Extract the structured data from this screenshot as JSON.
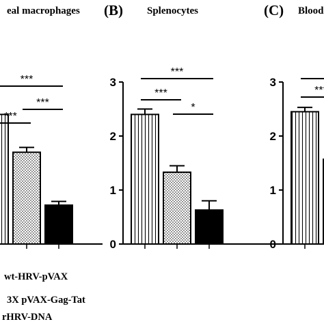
{
  "chart_data": [
    {
      "panel_label": "",
      "title": "eal macrophages",
      "type": "bar",
      "categories": [
        "wt-HRV-pVAX",
        "3X pVAX-Gag-Tat",
        "rHRV-DNA"
      ],
      "values": [
        2.4,
        1.7,
        0.72
      ],
      "errors": [
        0.0,
        0.09,
        0.07
      ],
      "ylim": [
        0,
        3
      ],
      "yticks": [],
      "significance": [
        {
          "from": 0,
          "to": 1,
          "label": "***"
        },
        {
          "from": 0,
          "to": 2,
          "label": "***"
        },
        {
          "from": 1,
          "to": 2,
          "label": "***"
        }
      ]
    },
    {
      "panel_label": "(B)",
      "title": "Splenocytes",
      "type": "bar",
      "categories": [
        "wt-HRV-pVAX",
        "3X pVAX-Gag-Tat",
        "rHRV-DNA"
      ],
      "values": [
        2.4,
        1.33,
        0.63
      ],
      "errors": [
        0.1,
        0.12,
        0.17
      ],
      "ylim": [
        0,
        3
      ],
      "yticks": [
        "0",
        "1",
        "2",
        "3"
      ],
      "significance": [
        {
          "from": 0,
          "to": 1,
          "label": "***"
        },
        {
          "from": 0,
          "to": 2,
          "label": "***"
        },
        {
          "from": 1,
          "to": 2,
          "label": "*"
        }
      ]
    },
    {
      "panel_label": "(C)",
      "title": "Blood",
      "type": "bar",
      "categories": [
        "wt-HRV-pVAX",
        "3X pVAX-Gag-Tat",
        "rHRV-DNA"
      ],
      "values": [
        2.45,
        1.57,
        0
      ],
      "errors": [
        0.08,
        0,
        0
      ],
      "ylim": [
        0,
        3
      ],
      "yticks": [
        "0",
        "1",
        "2",
        "3"
      ],
      "significance": [
        {
          "from": 0,
          "to": 2,
          "label": "***"
        },
        {
          "from": 0,
          "to": 1,
          "label": "***"
        }
      ]
    }
  ],
  "legend": {
    "items": [
      {
        "label": "wt-HRV-pVAX",
        "pattern": "vertical-stripes"
      },
      {
        "label": "3X pVAX-Gag-Tat",
        "pattern": "dots"
      },
      {
        "label": "rHRV-DNA",
        "pattern": "solid-black"
      }
    ]
  },
  "colors": {
    "ink": "#000000",
    "fill": "#ffffff"
  }
}
